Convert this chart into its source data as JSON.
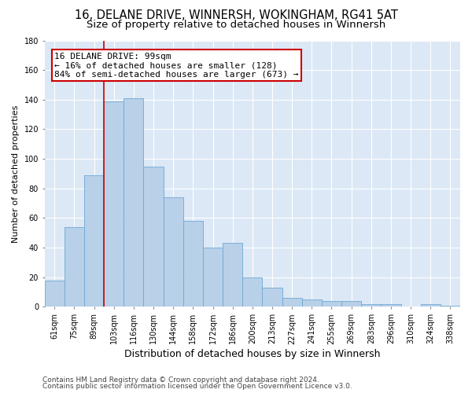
{
  "title_line1": "16, DELANE DRIVE, WINNERSH, WOKINGHAM, RG41 5AT",
  "title_line2": "Size of property relative to detached houses in Winnersh",
  "xlabel": "Distribution of detached houses by size in Winnersh",
  "ylabel": "Number of detached properties",
  "categories": [
    "61sqm",
    "75sqm",
    "89sqm",
    "103sqm",
    "116sqm",
    "130sqm",
    "144sqm",
    "158sqm",
    "172sqm",
    "186sqm",
    "200sqm",
    "213sqm",
    "227sqm",
    "241sqm",
    "255sqm",
    "269sqm",
    "283sqm",
    "296sqm",
    "310sqm",
    "324sqm",
    "338sqm"
  ],
  "values": [
    18,
    54,
    89,
    139,
    141,
    95,
    74,
    58,
    40,
    43,
    20,
    13,
    6,
    5,
    4,
    4,
    2,
    2,
    0,
    2,
    1
  ],
  "bar_color": "#b8d0e8",
  "bar_edge_color": "#6fa8d4",
  "background_color": "#dce8f5",
  "grid_color": "#ffffff",
  "vline_color": "#cc0000",
  "vline_x_index": 2.5,
  "annotation_text_line1": "16 DELANE DRIVE: 99sqm",
  "annotation_text_line2": "← 16% of detached houses are smaller (128)",
  "annotation_text_line3": "84% of semi-detached houses are larger (673) →",
  "annotation_box_facecolor": "#ffffff",
  "annotation_box_edgecolor": "#cc0000",
  "ylim": [
    0,
    180
  ],
  "yticks": [
    0,
    20,
    40,
    60,
    80,
    100,
    120,
    140,
    160,
    180
  ],
  "footer_line1": "Contains HM Land Registry data © Crown copyright and database right 2024.",
  "footer_line2": "Contains public sector information licensed under the Open Government Licence v3.0.",
  "title_fontsize": 10.5,
  "subtitle_fontsize": 9.5,
  "ylabel_fontsize": 8,
  "xlabel_fontsize": 9,
  "tick_fontsize": 7,
  "annotation_fontsize": 8,
  "footer_fontsize": 6.5
}
